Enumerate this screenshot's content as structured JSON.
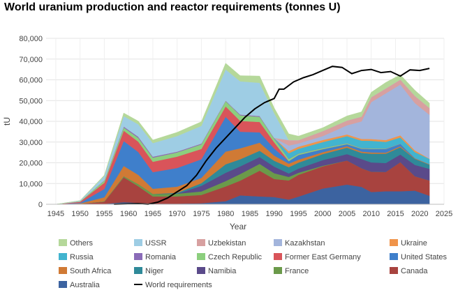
{
  "chart_data": {
    "type": "area",
    "stacked": true,
    "title": "World uranium production and reactor requirements (tonnes U)",
    "xlabel": "Year",
    "ylabel": "tU",
    "xlim": [
      1943,
      2025
    ],
    "ylim": [
      0,
      80000
    ],
    "x_ticks": [
      1945,
      1950,
      1955,
      1960,
      1965,
      1970,
      1975,
      1980,
      1985,
      1990,
      1995,
      2000,
      2005,
      2010,
      2015,
      2020,
      2025
    ],
    "y_ticks": [
      0,
      10000,
      20000,
      30000,
      40000,
      50000,
      60000,
      70000,
      80000
    ],
    "y_tick_labels": [
      "0",
      "10,000",
      "20,000",
      "30,000",
      "40,000",
      "50,000",
      "60,000",
      "70,000",
      "80,000"
    ],
    "grid": true,
    "legend_position": "bottom",
    "x": [
      1945,
      1950,
      1955,
      1959,
      1962,
      1965,
      1970,
      1975,
      1980,
      1983,
      1987,
      1990,
      1993,
      1995,
      2000,
      2005,
      2008,
      2010,
      2013,
      2016,
      2019,
      2022
    ],
    "series": [
      {
        "name": "Australia",
        "color": "#3c63a0",
        "values": [
          0,
          0,
          200,
          1000,
          700,
          300,
          300,
          500,
          1500,
          4300,
          3800,
          3500,
          2300,
          3700,
          7600,
          9500,
          8400,
          5900,
          6300,
          6300,
          6600,
          4100
        ]
      },
      {
        "name": "Canada",
        "color": "#a8433f",
        "values": [
          0,
          200,
          1000,
          12000,
          8000,
          3500,
          3500,
          4000,
          7100,
          7100,
          12400,
          8700,
          9200,
          10500,
          10700,
          11600,
          9000,
          9800,
          9300,
          14000,
          6900,
          7400
        ]
      },
      {
        "name": "France",
        "color": "#6b9a4a",
        "values": [
          0,
          0,
          200,
          500,
          1000,
          1200,
          1300,
          1700,
          2600,
          3200,
          3300,
          2800,
          1700,
          1000,
          300,
          0,
          0,
          0,
          0,
          0,
          0,
          0
        ]
      },
      {
        "name": "Namibia",
        "color": "#5a4a8a",
        "values": [
          0,
          0,
          0,
          0,
          0,
          0,
          0,
          2700,
          4000,
          3700,
          3300,
          3200,
          1700,
          2000,
          2700,
          3100,
          4400,
          4500,
          4300,
          3700,
          5500,
          5600
        ]
      },
      {
        "name": "Niger",
        "color": "#2f8a99",
        "values": [
          0,
          0,
          0,
          0,
          0,
          0,
          400,
          1300,
          4100,
          3400,
          3000,
          2800,
          3000,
          2900,
          2900,
          3100,
          3000,
          4200,
          4500,
          3500,
          2900,
          2000
        ]
      },
      {
        "name": "South Africa",
        "color": "#d07a35",
        "values": [
          0,
          200,
          2000,
          5000,
          4500,
          2500,
          3000,
          2500,
          6100,
          5300,
          3900,
          2500,
          1700,
          1400,
          900,
          700,
          600,
          600,
          500,
          500,
          300,
          200
        ]
      },
      {
        "name": "United States",
        "color": "#3f7fcb",
        "values": [
          0,
          300,
          4000,
          12000,
          11000,
          8000,
          9000,
          9000,
          16800,
          8000,
          5000,
          3400,
          1200,
          2300,
          1500,
          1000,
          1400,
          1700,
          1800,
          1100,
          70,
          75
        ]
      },
      {
        "name": "Former East Germany",
        "color": "#d9545a",
        "values": [
          0,
          500,
          3000,
          5000,
          5000,
          5000,
          5500,
          5000,
          5000,
          5200,
          5000,
          3000,
          0,
          0,
          0,
          0,
          0,
          0,
          0,
          0,
          0,
          0
        ]
      },
      {
        "name": "Czech Republic",
        "color": "#8ccf7e",
        "values": [
          0,
          200,
          1000,
          1500,
          1800,
          2000,
          2000,
          2200,
          2500,
          2700,
          2500,
          1800,
          1000,
          600,
          500,
          400,
          300,
          250,
          200,
          100,
          0,
          0
        ]
      },
      {
        "name": "Romania",
        "color": "#8a6bb8",
        "values": [
          0,
          0,
          200,
          500,
          600,
          500,
          400,
          400,
          300,
          400,
          400,
          300,
          150,
          100,
          90,
          90,
          80,
          70,
          70,
          50,
          0,
          0
        ]
      },
      {
        "name": "Russia",
        "color": "#42b4cf",
        "values": [
          0,
          0,
          0,
          0,
          0,
          0,
          0,
          0,
          0,
          0,
          0,
          0,
          2700,
          2250,
          2800,
          3400,
          3500,
          3600,
          3100,
          3000,
          2900,
          2500
        ]
      },
      {
        "name": "Ukraine",
        "color": "#f0944a",
        "values": [
          0,
          0,
          0,
          0,
          0,
          0,
          0,
          0,
          0,
          0,
          0,
          0,
          1000,
          1000,
          1000,
          800,
          800,
          850,
          900,
          1000,
          800,
          100
        ]
      },
      {
        "name": "Kazakhstan",
        "color": "#a3b5dc",
        "values": [
          0,
          0,
          0,
          0,
          0,
          0,
          0,
          0,
          0,
          0,
          0,
          0,
          2700,
          1600,
          1900,
          4400,
          8500,
          17800,
          22500,
          24500,
          22800,
          21200
        ]
      },
      {
        "name": "Uzbekistan",
        "color": "#d7a0a0",
        "values": [
          0,
          0,
          0,
          0,
          0,
          0,
          0,
          0,
          0,
          0,
          0,
          0,
          2600,
          1600,
          2400,
          2300,
          2300,
          2400,
          2400,
          2400,
          3500,
          3300
        ]
      },
      {
        "name": "USSR",
        "color": "#9ecde4",
        "values": [
          0,
          300,
          2000,
          5000,
          6000,
          6500,
          7500,
          8500,
          15000,
          16000,
          16000,
          12000,
          0,
          0,
          0,
          0,
          0,
          0,
          0,
          0,
          0,
          0
        ]
      },
      {
        "name": "Others",
        "color": "#b5d89a",
        "values": [
          0,
          100,
          400,
          1500,
          1500,
          1500,
          1800,
          2000,
          3000,
          2700,
          3200,
          2500,
          3000,
          1900,
          1600,
          2200,
          2300,
          2300,
          2900,
          2300,
          2700,
          2300
        ]
      }
    ],
    "requirements": {
      "name": "World requirements",
      "color": "#000000",
      "x": [
        1957,
        1962,
        1964,
        1966,
        1968,
        1970,
        1972,
        1974,
        1976,
        1978,
        1980,
        1982,
        1984,
        1986,
        1988,
        1990,
        1991,
        1992,
        1994,
        1996,
        1998,
        2000,
        2002,
        2004,
        2006,
        2008,
        2010,
        2012,
        2014,
        2016,
        2018,
        2020,
        2022
      ],
      "values": [
        0,
        300,
        0,
        1000,
        3000,
        6000,
        9000,
        14000,
        21000,
        27000,
        32000,
        37000,
        42000,
        46000,
        49000,
        51000,
        55500,
        55500,
        59000,
        61000,
        62500,
        64500,
        66500,
        66000,
        63000,
        64500,
        65000,
        63500,
        64000,
        61800,
        64800,
        64500,
        65500
      ]
    },
    "legend": [
      "Others",
      "USSR",
      "Uzbekistan",
      "Kazakhstan",
      "Ukraine",
      "Russia",
      "Romania",
      "Czech Republic",
      "Former East Germany",
      "United States",
      "South Africa",
      "Niger",
      "Namibia",
      "France",
      "Canada",
      "Australia",
      "World requirements"
    ]
  }
}
